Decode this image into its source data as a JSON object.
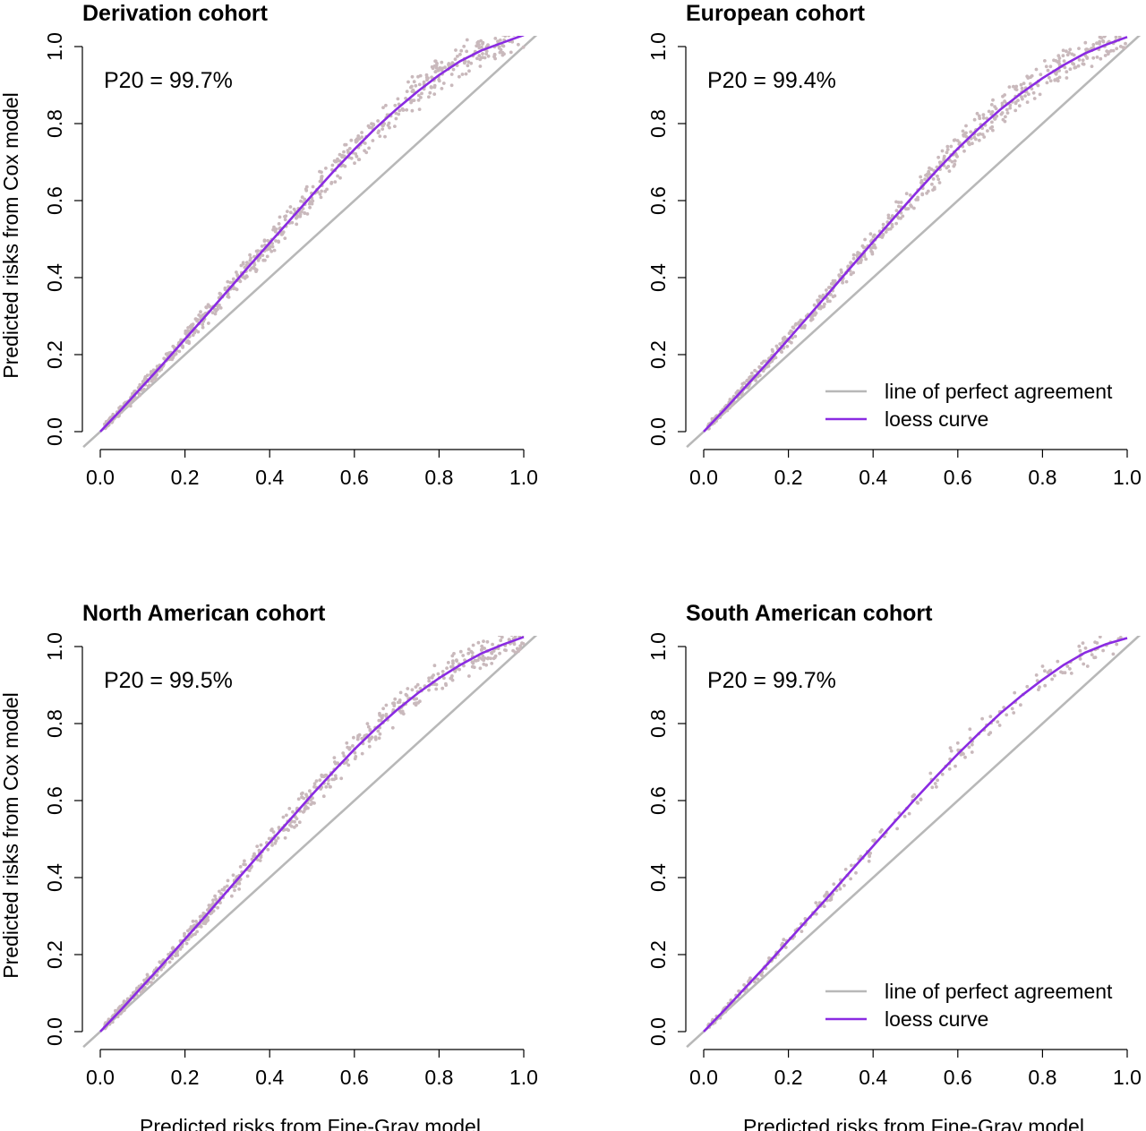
{
  "colors": {
    "points": "#c9b9bc",
    "agreement_line": "#b8b8b8",
    "loess_curve": "#8a2be2",
    "axis": "#000000"
  },
  "chart_data": [
    {
      "type": "scatter",
      "title": "Derivation cohort",
      "annotation": "P20 = 99.7%",
      "xlabel": "",
      "ylabel": "Predicted risks from Cox model",
      "xlim": [
        0,
        1
      ],
      "ylim": [
        0,
        1
      ],
      "xticks": [
        "0.0",
        "0.2",
        "0.4",
        "0.6",
        "0.8",
        "1.0"
      ],
      "yticks": [
        "0.0",
        "0.2",
        "0.4",
        "0.6",
        "0.8",
        "1.0"
      ],
      "legend": null,
      "reference_line": {
        "label": "line of perfect agreement",
        "x": [
          0,
          1
        ],
        "y": [
          0,
          1
        ]
      },
      "loess_curve": {
        "label": "loess curve",
        "x": [
          0,
          0.05,
          0.1,
          0.15,
          0.2,
          0.25,
          0.3,
          0.35,
          0.4,
          0.45,
          0.5,
          0.55,
          0.6,
          0.65,
          0.7,
          0.75,
          0.8,
          0.85,
          0.9,
          0.95,
          1.0
        ],
        "y": [
          0.0,
          0.058,
          0.118,
          0.178,
          0.24,
          0.302,
          0.365,
          0.428,
          0.49,
          0.552,
          0.614,
          0.675,
          0.733,
          0.788,
          0.838,
          0.884,
          0.926,
          0.962,
          0.99,
          1.01,
          1.03
        ]
      },
      "points": {
        "n": 700,
        "x_range": [
          0.01,
          1.0
        ],
        "max_dev": 0.045
      }
    },
    {
      "type": "scatter",
      "title": "European cohort",
      "annotation": "P20 = 99.4%",
      "xlabel": "",
      "ylabel": "",
      "xlim": [
        0,
        1
      ],
      "ylim": [
        0,
        1
      ],
      "xticks": [
        "0.0",
        "0.2",
        "0.4",
        "0.6",
        "0.8",
        "1.0"
      ],
      "yticks": [
        "0.0",
        "0.2",
        "0.4",
        "0.6",
        "0.8",
        "1.0"
      ],
      "legend": {
        "position": "bottom-right",
        "items": [
          {
            "label": "line of perfect agreement",
            "kind": "agreement"
          },
          {
            "label": "loess curve",
            "kind": "loess"
          }
        ]
      },
      "reference_line": {
        "label": "line of perfect agreement",
        "x": [
          0,
          1
        ],
        "y": [
          0,
          1
        ]
      },
      "loess_curve": {
        "label": "loess curve",
        "x": [
          0,
          0.05,
          0.1,
          0.15,
          0.2,
          0.25,
          0.3,
          0.35,
          0.4,
          0.45,
          0.5,
          0.55,
          0.6,
          0.65,
          0.7,
          0.75,
          0.8,
          0.85,
          0.9,
          0.95,
          1.0
        ],
        "y": [
          0.0,
          0.058,
          0.118,
          0.178,
          0.24,
          0.303,
          0.366,
          0.43,
          0.493,
          0.556,
          0.618,
          0.678,
          0.735,
          0.788,
          0.836,
          0.879,
          0.918,
          0.952,
          0.982,
          1.005,
          1.025
        ]
      },
      "points": {
        "n": 650,
        "x_range": [
          0.01,
          1.0
        ],
        "max_dev": 0.04
      }
    },
    {
      "type": "scatter",
      "title": "North American cohort",
      "annotation": "P20 = 99.5%",
      "xlabel": "Predicted risks from Fine-Gray model",
      "ylabel": "Predicted risks from Cox model",
      "xlim": [
        0,
        1
      ],
      "ylim": [
        0,
        1
      ],
      "xticks": [
        "0.0",
        "0.2",
        "0.4",
        "0.6",
        "0.8",
        "1.0"
      ],
      "yticks": [
        "0.0",
        "0.2",
        "0.4",
        "0.6",
        "0.8",
        "1.0"
      ],
      "legend": null,
      "reference_line": {
        "label": "line of perfect agreement",
        "x": [
          0,
          1
        ],
        "y": [
          0,
          1
        ]
      },
      "loess_curve": {
        "label": "loess curve",
        "x": [
          0,
          0.05,
          0.1,
          0.15,
          0.2,
          0.25,
          0.3,
          0.35,
          0.4,
          0.45,
          0.5,
          0.55,
          0.6,
          0.65,
          0.7,
          0.75,
          0.8,
          0.85,
          0.9,
          0.95,
          1.0
        ],
        "y": [
          0.0,
          0.058,
          0.118,
          0.178,
          0.24,
          0.302,
          0.365,
          0.428,
          0.491,
          0.553,
          0.615,
          0.675,
          0.733,
          0.786,
          0.835,
          0.879,
          0.918,
          0.952,
          0.982,
          1.005,
          1.025
        ]
      },
      "points": {
        "n": 650,
        "x_range": [
          0.01,
          1.0
        ],
        "max_dev": 0.04
      }
    },
    {
      "type": "scatter",
      "title": "South American cohort",
      "annotation": "P20 = 99.7%",
      "xlabel": "Predicted risks from Fine-Gray model",
      "ylabel": "",
      "xlim": [
        0,
        1
      ],
      "ylim": [
        0,
        1
      ],
      "xticks": [
        "0.0",
        "0.2",
        "0.4",
        "0.6",
        "0.8",
        "1.0"
      ],
      "yticks": [
        "0.0",
        "0.2",
        "0.4",
        "0.6",
        "0.8",
        "1.0"
      ],
      "legend": {
        "position": "bottom-right",
        "items": [
          {
            "label": "line of perfect agreement",
            "kind": "agreement"
          },
          {
            "label": "loess curve",
            "kind": "loess"
          }
        ]
      },
      "reference_line": {
        "label": "line of perfect agreement",
        "x": [
          0,
          1
        ],
        "y": [
          0,
          1
        ]
      },
      "loess_curve": {
        "label": "loess curve",
        "x": [
          0,
          0.05,
          0.1,
          0.15,
          0.2,
          0.25,
          0.3,
          0.35,
          0.4,
          0.45,
          0.5,
          0.55,
          0.6,
          0.65,
          0.7,
          0.75,
          0.8,
          0.85,
          0.9,
          0.95,
          1.0
        ],
        "y": [
          0.0,
          0.057,
          0.116,
          0.175,
          0.236,
          0.297,
          0.358,
          0.42,
          0.482,
          0.544,
          0.605,
          0.664,
          0.721,
          0.775,
          0.826,
          0.872,
          0.914,
          0.952,
          0.984,
          1.006,
          1.022
        ]
      },
      "points": {
        "n": 260,
        "x_range": [
          0.01,
          1.0
        ],
        "max_dev": 0.035
      }
    }
  ]
}
